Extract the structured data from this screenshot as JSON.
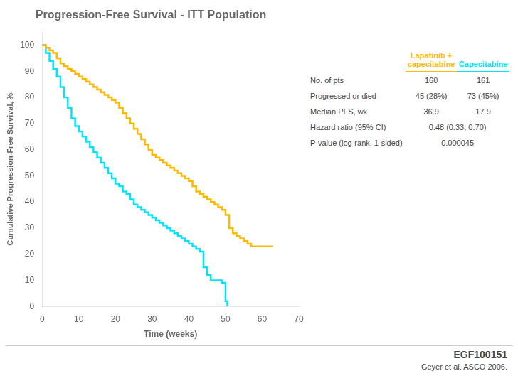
{
  "chart_data": {
    "type": "line",
    "line_style": "steps",
    "title": "Progression-Free Survival - ITT Population",
    "xlabel": "Time (weeks)",
    "ylabel": "Cumulative Progression-Free Survival, %",
    "xlim": [
      0,
      70
    ],
    "ylim": [
      0,
      105
    ],
    "xticks": [
      0,
      10,
      20,
      30,
      40,
      50,
      60,
      70
    ],
    "yticks": [
      0,
      10,
      20,
      30,
      40,
      50,
      60,
      70,
      80,
      90,
      100
    ],
    "grid": false,
    "series": [
      {
        "color": "#FFB800",
        "x": [
          0,
          1,
          2,
          3,
          4,
          5,
          6,
          7,
          8,
          9,
          10,
          11,
          12,
          13,
          14,
          15,
          16,
          17,
          18,
          19,
          20,
          21,
          22,
          23,
          24,
          25,
          26,
          27,
          28,
          29,
          30,
          31,
          32,
          33,
          34,
          35,
          36,
          37,
          38,
          39,
          40,
          41,
          42,
          43,
          44,
          45,
          46,
          47,
          48,
          49,
          50,
          51,
          52,
          53,
          54,
          55,
          56,
          57,
          58,
          59,
          60,
          61,
          62,
          63
        ],
        "values": [
          100,
          99,
          98,
          97,
          95,
          93,
          92,
          91,
          90,
          89,
          88,
          87,
          86,
          85,
          84,
          83,
          82,
          81,
          80,
          79,
          78,
          76,
          74,
          72,
          70,
          68,
          66,
          64,
          62,
          60,
          58,
          57,
          56,
          55,
          54,
          53,
          52,
          51,
          50,
          49,
          48,
          46,
          44,
          43,
          42,
          41,
          40,
          39,
          38,
          37,
          35,
          30,
          28,
          27,
          26,
          25,
          24,
          23,
          23,
          23,
          23,
          23,
          23,
          23
        ]
      },
      {
        "color": "#00E5FF",
        "x": [
          0,
          1,
          2,
          3,
          4,
          5,
          6,
          7,
          8,
          9,
          10,
          11,
          12,
          13,
          14,
          15,
          16,
          17,
          18,
          19,
          20,
          21,
          22,
          23,
          24,
          25,
          26,
          27,
          28,
          29,
          30,
          31,
          32,
          33,
          34,
          35,
          36,
          37,
          38,
          39,
          40,
          41,
          42,
          43,
          44,
          45,
          46,
          47,
          48,
          49,
          50,
          50.5
        ],
        "values": [
          100,
          97,
          94,
          91,
          88,
          84,
          80,
          76,
          72,
          69,
          67,
          65,
          63,
          61,
          59,
          57,
          55,
          53,
          51,
          49,
          47,
          46,
          44,
          43,
          41,
          39,
          38,
          37,
          36,
          35,
          34,
          33,
          32,
          31,
          30,
          29,
          28,
          27,
          26,
          25,
          24,
          23,
          22,
          21,
          15,
          12,
          10,
          10,
          10,
          9,
          2,
          0
        ]
      }
    ],
    "table": {
      "columns": [
        {
          "label": [
            "Lapatinib +",
            "capecitabine"
          ],
          "color": "#FFB800"
        },
        {
          "label": [
            "Capecitabine"
          ],
          "color": "#00E5FF"
        }
      ],
      "rows": [
        {
          "label": "No. of pts",
          "values": [
            "160",
            "161"
          ]
        },
        {
          "label": "Progressed or died",
          "values": [
            "45 (28%)",
            "73 (45%)"
          ]
        },
        {
          "label": "Median PFS, wk",
          "values": [
            "36.9",
            "17.9"
          ]
        },
        {
          "label": "Hazard ratio (95% CI)",
          "values": [
            "0.48 (0.33, 0.70)"
          ]
        },
        {
          "label": "P-value (log-rank, 1-sided)",
          "values": [
            "0.000045"
          ]
        }
      ]
    },
    "annotations": [
      {
        "text": "EGF100151"
      },
      {
        "text": "Geyer et al. ASCO 2006."
      }
    ]
  }
}
